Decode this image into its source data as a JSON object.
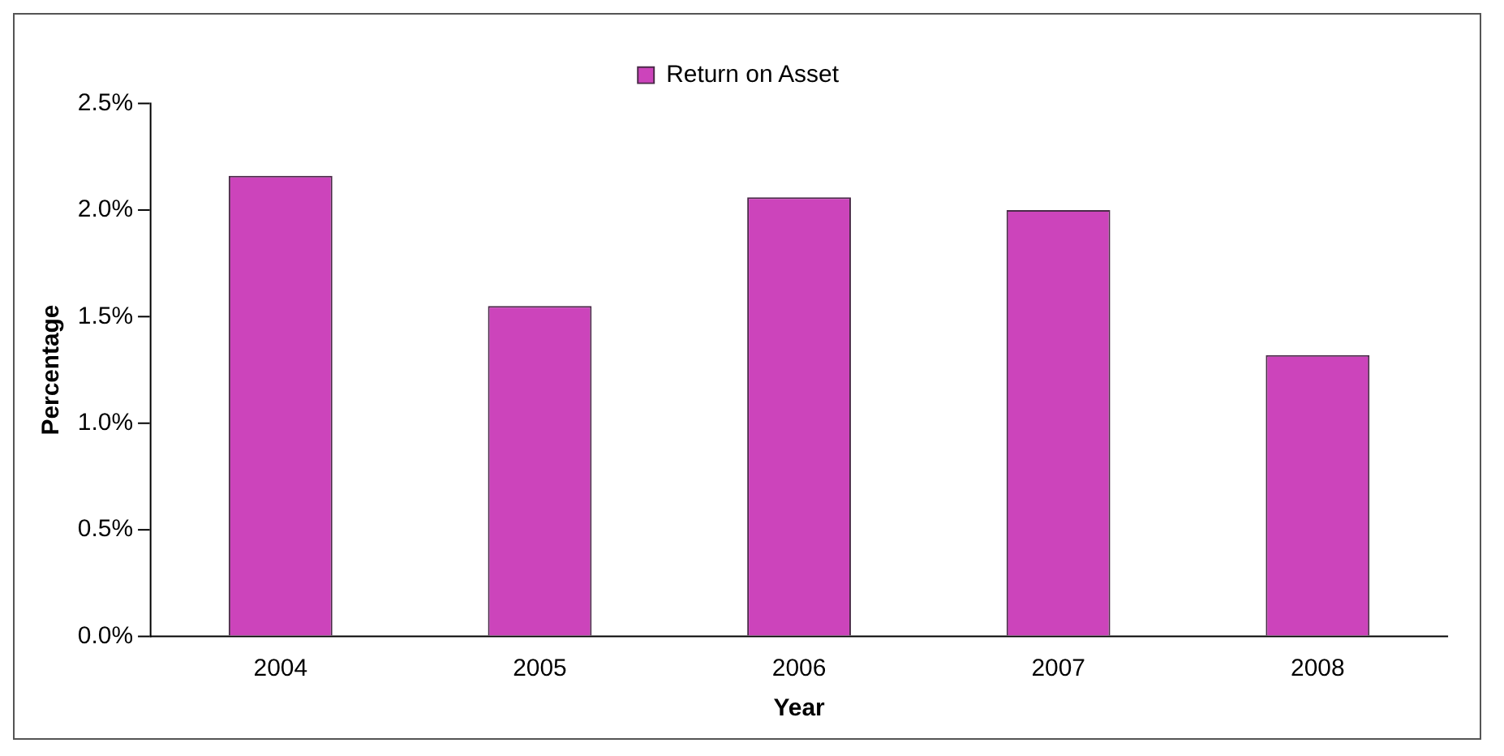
{
  "chart_data": {
    "type": "bar",
    "xlabel": "Year",
    "ylabel": "Percentage",
    "categories": [
      "2004",
      "2005",
      "2006",
      "2007",
      "2008"
    ],
    "series": [
      {
        "name": "Return on Asset",
        "color": "#cc44bb",
        "values": [
          2.16,
          1.55,
          2.06,
          2.0,
          1.32
        ]
      }
    ],
    "ylim": [
      0,
      2.5
    ],
    "yticks": [
      {
        "value": 0,
        "label": "0.0%"
      },
      {
        "value": 0.5,
        "label": "0.5%"
      },
      {
        "value": 1,
        "label": "1.0%"
      },
      {
        "value": 1.5,
        "label": "1.5%"
      },
      {
        "value": 2,
        "label": "2.0%"
      },
      {
        "value": 2.5,
        "label": "2.5%"
      }
    ],
    "grid": false,
    "legend": "top"
  }
}
